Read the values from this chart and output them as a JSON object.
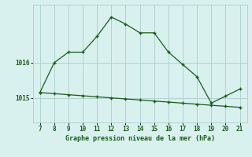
{
  "x": [
    7,
    8,
    9,
    10,
    11,
    12,
    13,
    14,
    15,
    16,
    17,
    18,
    19,
    20,
    21
  ],
  "y_upper": [
    1015.15,
    1016.0,
    1016.3,
    1016.3,
    1016.75,
    1017.3,
    1017.1,
    1016.85,
    1016.85,
    1016.3,
    1015.95,
    1015.6,
    1014.85,
    1015.05,
    1015.25
  ],
  "y_lower": [
    1015.15,
    1015.12,
    1015.09,
    1015.06,
    1015.03,
    1015.0,
    1014.97,
    1014.94,
    1014.91,
    1014.88,
    1014.85,
    1014.82,
    1014.79,
    1014.76,
    1014.73
  ],
  "line_color": "#1a5c1a",
  "bg_color": "#d8f0ee",
  "grid_color": "#aacfcc",
  "xlabel": "Graphe pression niveau de la mer (hPa)",
  "ytick_labels": [
    "1015",
    "1016"
  ],
  "ytick_vals": [
    1015,
    1016
  ],
  "xticks": [
    7,
    8,
    9,
    10,
    11,
    12,
    13,
    14,
    15,
    16,
    17,
    18,
    19,
    20,
    21
  ],
  "ylim": [
    1014.3,
    1017.65
  ],
  "xlim": [
    6.5,
    21.5
  ]
}
